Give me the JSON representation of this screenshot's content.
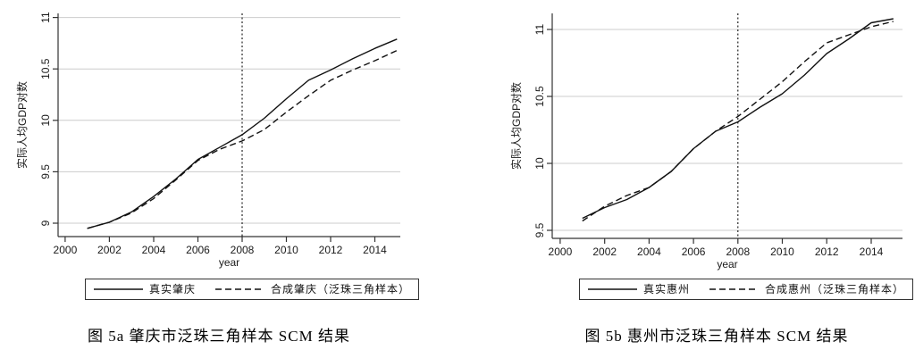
{
  "colors": {
    "line": "#111111",
    "grid": "#cccccc",
    "axis": "#333333",
    "text": "#1a1a1a",
    "background": "#ffffff"
  },
  "chart_data": [
    {
      "type": "line",
      "title": "图 5a 肇庆市泛珠三角样本 SCM 结果",
      "xlabel": "year",
      "ylabel": "实际人均GDP对数",
      "x": [
        2001,
        2002,
        2003,
        2004,
        2005,
        2006,
        2007,
        2008,
        2009,
        2010,
        2011,
        2012,
        2013,
        2014,
        2015
      ],
      "series": [
        {
          "name": "真实肇庆",
          "style": "solid",
          "values": [
            8.95,
            9.01,
            9.11,
            9.26,
            9.43,
            9.62,
            9.74,
            9.86,
            10.02,
            10.21,
            10.39,
            10.49,
            10.6,
            10.7,
            10.79
          ]
        },
        {
          "name": "合成肇庆（泛珠三角样本）",
          "style": "dashed",
          "values": [
            8.95,
            9.01,
            9.1,
            9.24,
            9.42,
            9.61,
            9.72,
            9.8,
            9.91,
            10.08,
            10.24,
            10.39,
            10.49,
            10.58,
            10.68
          ]
        }
      ],
      "xticks": [
        2000,
        2002,
        2004,
        2006,
        2008,
        2010,
        2012,
        2014
      ],
      "yticks": [
        9,
        9.5,
        10,
        10.5,
        11
      ],
      "ytick_labels": [
        "9",
        "9.5",
        "10",
        "10.5",
        "11"
      ],
      "xlim": [
        1999.68,
        2015.15
      ],
      "ylim": [
        8.87,
        11.04
      ],
      "vline_x": 2008,
      "grid": "horizontal",
      "legend_position": "bottom"
    },
    {
      "type": "line",
      "title": "图 5b 惠州市泛珠三角样本 SCM 结果",
      "xlabel": "year",
      "ylabel": "实际人均GDP对数",
      "x": [
        2001,
        2002,
        2003,
        2004,
        2005,
        2006,
        2007,
        2008,
        2009,
        2010,
        2011,
        2012,
        2013,
        2014,
        2015
      ],
      "series": [
        {
          "name": "真实惠州",
          "style": "solid",
          "values": [
            9.59,
            9.67,
            9.73,
            9.82,
            9.94,
            10.11,
            10.24,
            10.31,
            10.42,
            10.52,
            10.66,
            10.82,
            10.93,
            11.05,
            11.08
          ]
        },
        {
          "name": "合成惠州（泛珠三角样本）",
          "style": "dashed",
          "values": [
            9.57,
            9.68,
            9.76,
            9.82,
            9.94,
            10.11,
            10.24,
            10.35,
            10.48,
            10.61,
            10.76,
            10.9,
            10.96,
            11.02,
            11.06
          ]
        }
      ],
      "xticks": [
        2000,
        2002,
        2004,
        2006,
        2008,
        2010,
        2012,
        2014
      ],
      "yticks": [
        9.5,
        10,
        10.5,
        11
      ],
      "ytick_labels": [
        "9.5",
        "10",
        "10.5",
        "11"
      ],
      "xlim": [
        1999.64,
        2015.41
      ],
      "ylim": [
        9.44,
        11.12
      ],
      "vline_x": 2008,
      "grid": "horizontal",
      "legend_position": "bottom"
    }
  ]
}
